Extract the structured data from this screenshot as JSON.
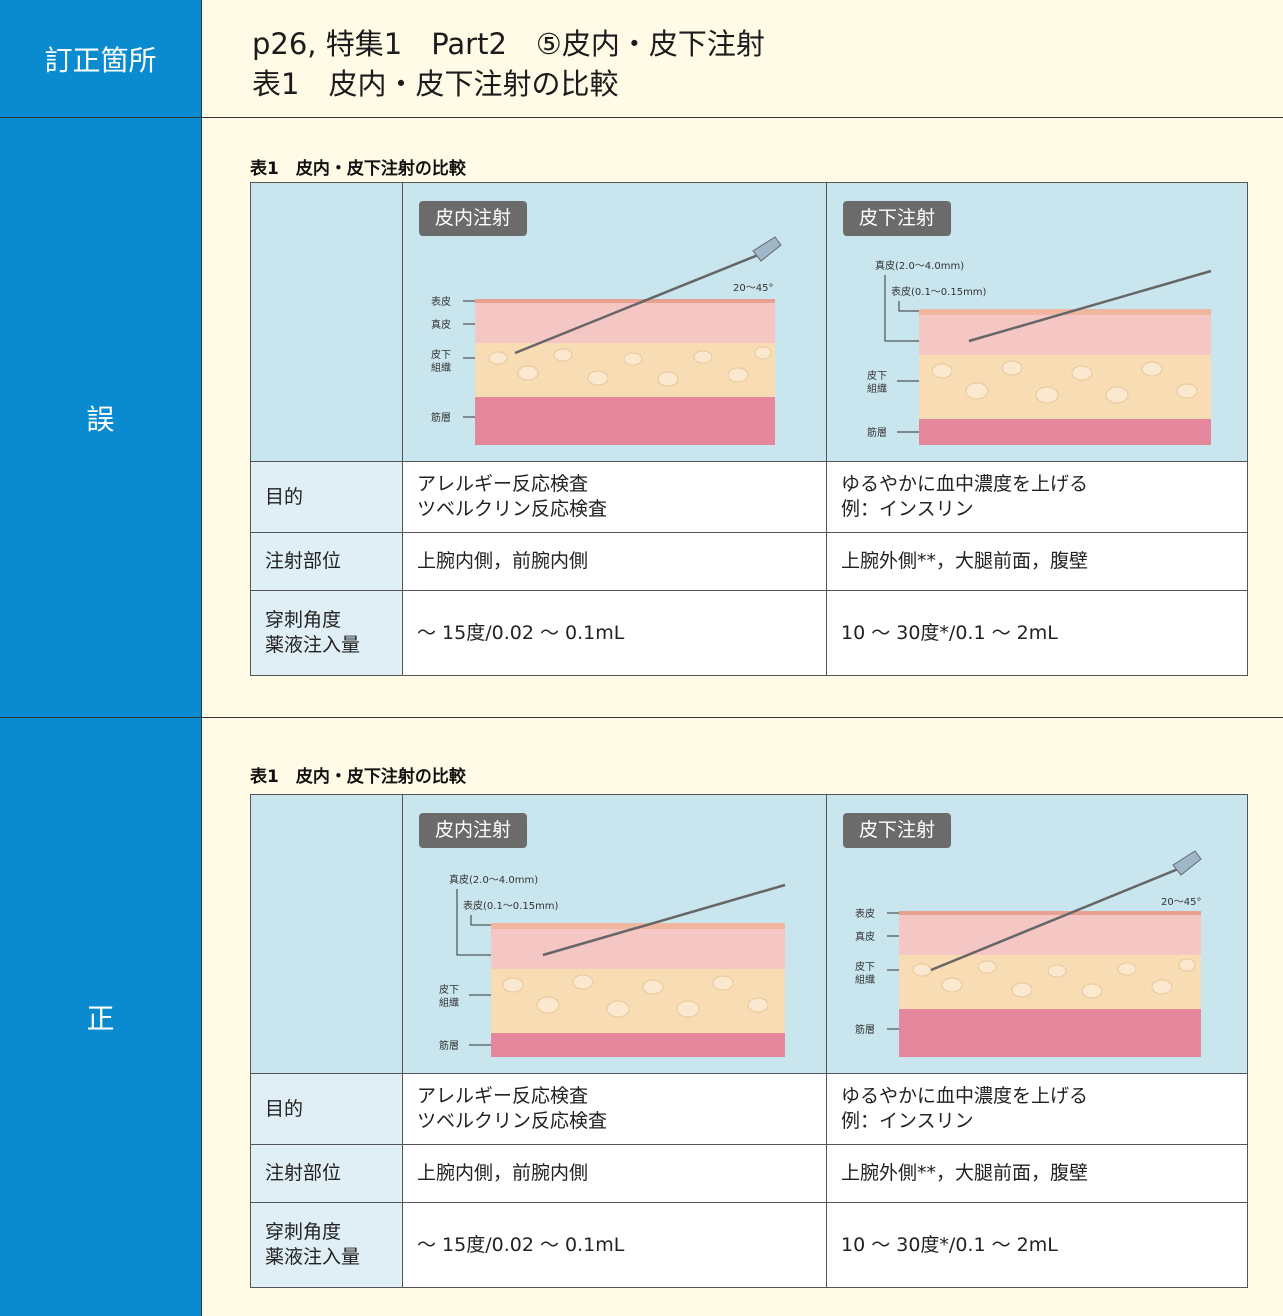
{
  "header": {
    "label": "訂正箇所",
    "line1": "p26, 特集1　Part2　⑤皮内・皮下注射",
    "line2": "表1　皮内・皮下注射の比較"
  },
  "sections": [
    {
      "label": "誤",
      "caption": "表1　皮内・皮下注射の比較",
      "col1_title": "皮内注射",
      "col2_title": "皮下注射",
      "col1_labels": [
        "表皮",
        "真皮",
        "皮下",
        "組織",
        "筋層",
        "20〜45°"
      ],
      "col2_labels": [
        "真皮(2.0〜4.0mm)",
        "表皮(0.1〜0.15mm)",
        "皮下",
        "組織",
        "筋層"
      ],
      "rows": [
        {
          "head": "目的",
          "col1": "アレルギー反応検査\nツベルクリン反応検査",
          "col2": "ゆるやかに血中濃度を上げる\n例：インスリン"
        },
        {
          "head": "注射部位",
          "col1": "上腕内側，前腕内側",
          "col2": "上腕外側**，大腿前面，腹壁"
        },
        {
          "head": "穿刺角度\n薬液注入量",
          "col1": "〜 15度/0.02 〜 0.1mL",
          "col2": "10 〜 30度*/0.1 〜 2mL"
        }
      ]
    },
    {
      "label": "正",
      "caption": "表1　皮内・皮下注射の比較",
      "col1_title": "皮内注射",
      "col2_title": "皮下注射",
      "col1_labels": [
        "真皮(2.0〜4.0mm)",
        "表皮(0.1〜0.15mm)",
        "皮下",
        "組織",
        "筋層"
      ],
      "col2_labels": [
        "表皮",
        "真皮",
        "皮下",
        "組織",
        "筋層",
        "20〜45°"
      ],
      "rows": [
        {
          "head": "目的",
          "col1": "アレルギー反応検査\nツベルクリン反応検査",
          "col2": "ゆるやかに血中濃度を上げる\n例：インスリン"
        },
        {
          "head": "注射部位",
          "col1": "上腕内側，前腕内側",
          "col2": "上腕外側**，大腿前面，腹壁"
        },
        {
          "head": "穿刺角度\n薬液注入量",
          "col1": "〜 15度/0.02 〜 0.1mL",
          "col2": "10 〜 30度*/0.1 〜 2mL"
        }
      ]
    }
  ],
  "colors": {
    "accent": "#0a8bd0",
    "table_header": "#c9e6ef",
    "row_head": "#dfeff5",
    "page": "#fffbe6"
  }
}
